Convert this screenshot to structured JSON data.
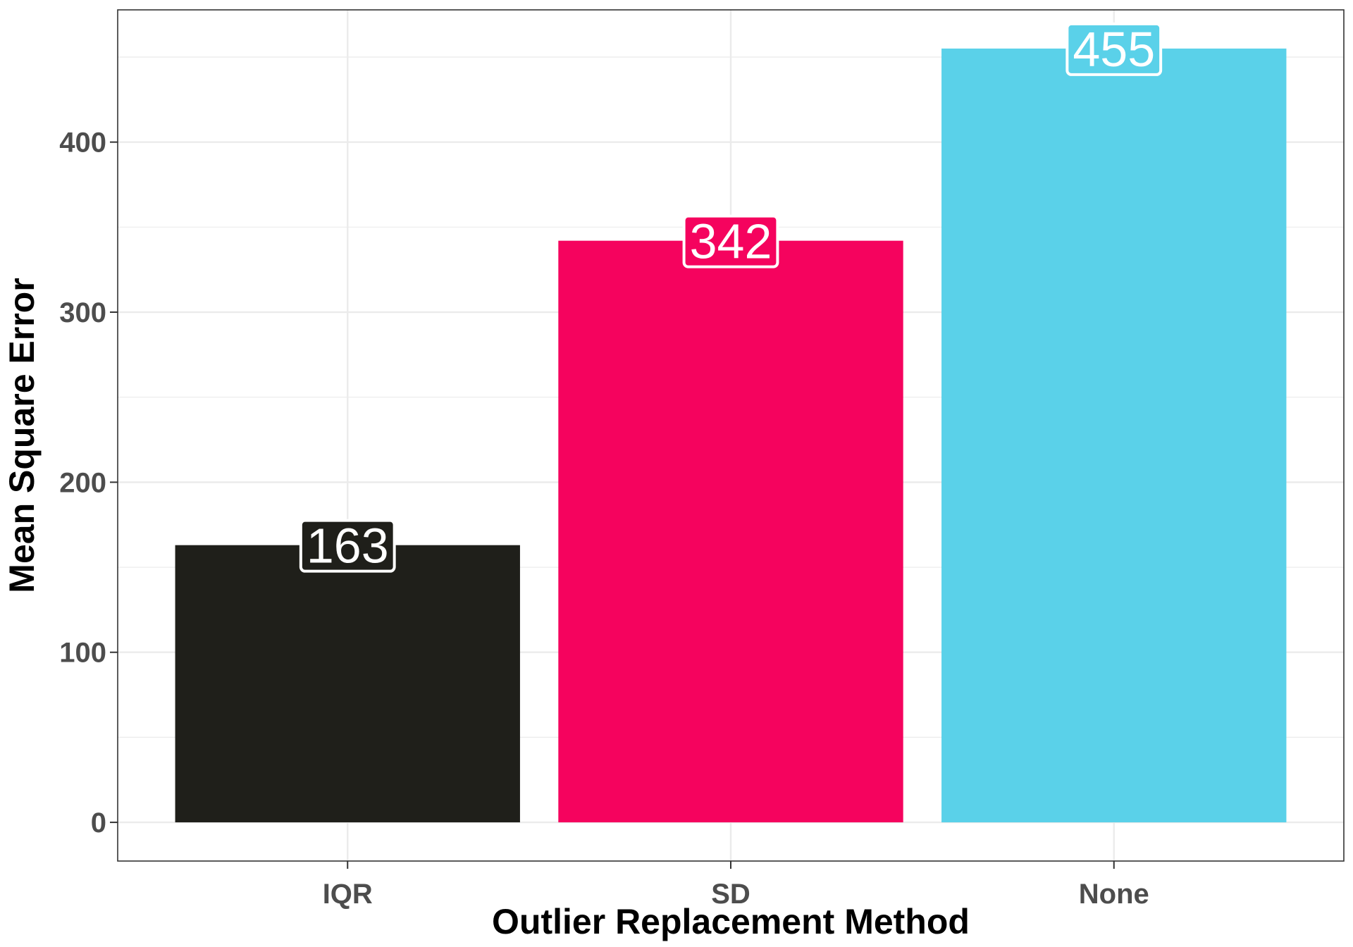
{
  "chart_data": {
    "type": "bar",
    "title": "",
    "xlabel": "Outlier Replacement Method",
    "ylabel": "Mean Square Error",
    "categories": [
      "IQR",
      "SD",
      "None"
    ],
    "values": [
      163,
      342,
      455
    ],
    "data_labels": [
      "163",
      "342",
      "455"
    ],
    "colors": [
      "#1f1f1a",
      "#f5035e",
      "#5ad1e9"
    ],
    "ylim": [
      -22.75,
      477.75
    ],
    "yticks": [
      0,
      100,
      200,
      300,
      400
    ],
    "ytick_labels": [
      "0",
      "100",
      "200",
      "300",
      "400"
    ],
    "grid": true,
    "legend": "none"
  }
}
